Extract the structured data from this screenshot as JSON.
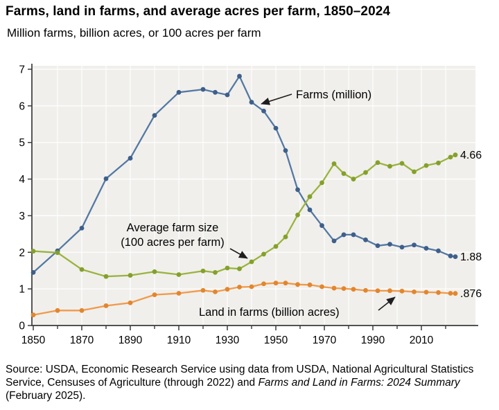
{
  "header": {
    "title": "Farms, land in farms, and average acres per farm, 1850–2024",
    "subtitle": "Million farms, billion acres, or 100 acres per farm"
  },
  "chart_data": {
    "type": "line",
    "x": [
      1850,
      1860,
      1870,
      1880,
      1890,
      1900,
      1910,
      1920,
      1925,
      1930,
      1935,
      1940,
      1945,
      1950,
      1954,
      1959,
      1964,
      1969,
      1974,
      1978,
      1982,
      1987,
      1992,
      1997,
      2002,
      2007,
      2012,
      2017,
      2022,
      2024
    ],
    "series": [
      {
        "name": "Farms (million)",
        "values": [
          1.45,
          2.04,
          2.66,
          4.01,
          4.57,
          5.74,
          6.37,
          6.45,
          6.37,
          6.3,
          6.81,
          6.1,
          5.86,
          5.39,
          4.78,
          3.71,
          3.16,
          2.73,
          2.31,
          2.48,
          2.48,
          2.34,
          2.18,
          2.22,
          2.14,
          2.2,
          2.11,
          2.04,
          1.9,
          1.88
        ],
        "color": "#5478a2",
        "marker_color": "#3e5f8a",
        "end_label": "1.88"
      },
      {
        "name": "Land in farms (billion acres)",
        "values": [
          0.29,
          0.41,
          0.41,
          0.54,
          0.62,
          0.84,
          0.88,
          0.96,
          0.92,
          0.99,
          1.05,
          1.06,
          1.14,
          1.16,
          1.16,
          1.12,
          1.11,
          1.06,
          1.02,
          1.01,
          0.99,
          0.96,
          0.95,
          0.95,
          0.94,
          0.92,
          0.91,
          0.9,
          0.88,
          0.876
        ],
        "color": "#f19a4b",
        "marker_color": "#e2862e",
        "end_label": ".876"
      },
      {
        "name": "Average farm size (100 acres per farm)",
        "values": [
          2.03,
          1.99,
          1.53,
          1.34,
          1.37,
          1.47,
          1.39,
          1.49,
          1.45,
          1.57,
          1.55,
          1.74,
          1.95,
          2.16,
          2.42,
          3.02,
          3.52,
          3.9,
          4.42,
          4.15,
          4.0,
          4.18,
          4.45,
          4.35,
          4.43,
          4.2,
          4.37,
          4.44,
          4.6,
          4.66
        ],
        "color": "#9ab33d",
        "marker_color": "#84a02c",
        "end_label": "4.66"
      }
    ],
    "ylim": [
      0,
      7
    ],
    "yticks": [
      0,
      1,
      2,
      3,
      4,
      5,
      6,
      7
    ],
    "xticks_labeled": [
      1850,
      1870,
      1890,
      1910,
      1930,
      1950,
      1970,
      1990,
      2010
    ],
    "xticks_minor": [
      1860,
      1880,
      1900,
      1920,
      1940,
      1960,
      1980,
      2000,
      2020
    ],
    "grid": true,
    "legend_position": "annotations-inline",
    "plot_bg": "#f0efec",
    "grid_color": "#ffffff",
    "axis_color": "#3a3a3a",
    "annotations": {
      "farms": "Farms (million)",
      "avg_line1": "Average farm size",
      "avg_line2": "(100 acres per farm)",
      "land": "Land in farms (billion acres)"
    }
  },
  "source": {
    "prefix": "Source: USDA, Economic Research Service using data from USDA, National Agricultural Statistics Service, Censuses of Agriculture (through 2022) and ",
    "italic_title": "Farms and Land in Farms: 2024 Summary",
    "suffix": " (February 2025)."
  }
}
